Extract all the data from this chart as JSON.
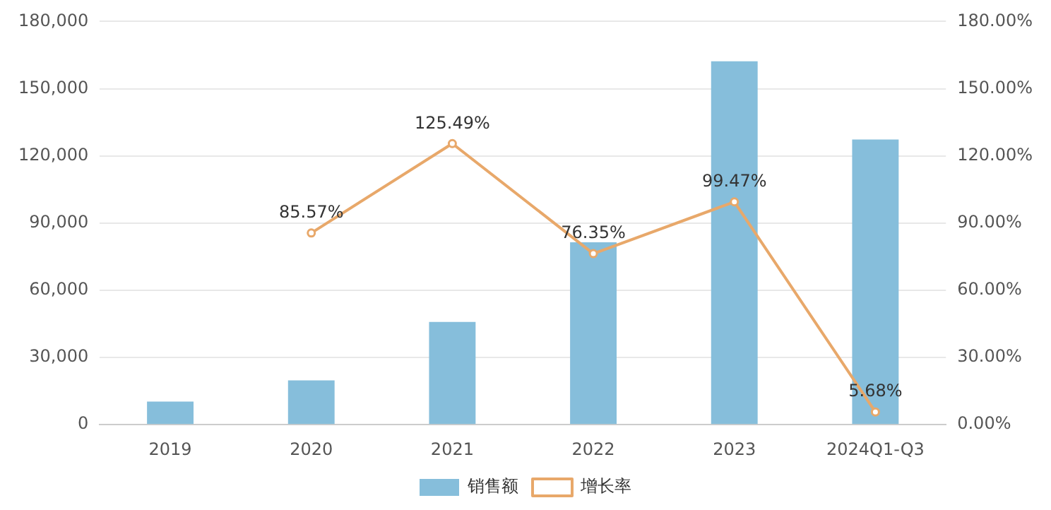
{
  "chart_data": {
    "type": "bar",
    "categories": [
      "2019",
      "2020",
      "2021",
      "2022",
      "2023",
      "2024Q1-Q3"
    ],
    "series": [
      {
        "name": "销售额",
        "color": "#86bedb",
        "values": [
          10300,
          19800,
          45900,
          81400,
          162200,
          127300
        ]
      },
      {
        "name": "增长率",
        "type": "line",
        "axis": "y2",
        "color": "#e8a86a",
        "marker": "circle",
        "values": [
          null,
          85.57,
          125.49,
          76.35,
          99.47,
          5.68
        ],
        "value_labels": [
          null,
          "85.57%",
          "125.49%",
          "76.35%",
          "99.47%",
          "5.68%"
        ]
      }
    ],
    "ylim": [
      0,
      180000
    ],
    "yticks": [
      {
        "value": 0,
        "label": "0"
      },
      {
        "value": 30000,
        "label": "30,000"
      },
      {
        "value": 60000,
        "label": "60,000"
      },
      {
        "value": 90000,
        "label": "90,000"
      },
      {
        "value": 120000,
        "label": "120,000"
      },
      {
        "value": 150000,
        "label": "150,000"
      },
      {
        "value": 180000,
        "label": "180,000"
      }
    ],
    "y2lim": [
      0,
      180
    ],
    "y2ticks": [
      {
        "value": 0,
        "label": "0.00%"
      },
      {
        "value": 30,
        "label": "30.00%"
      },
      {
        "value": 60,
        "label": "60.00%"
      },
      {
        "value": 90,
        "label": "90.00%"
      },
      {
        "value": 120,
        "label": "120.00%"
      },
      {
        "value": 150,
        "label": "150.00%"
      },
      {
        "value": 180,
        "label": "180.00%"
      }
    ],
    "grid": "y",
    "legend": "bottom"
  }
}
